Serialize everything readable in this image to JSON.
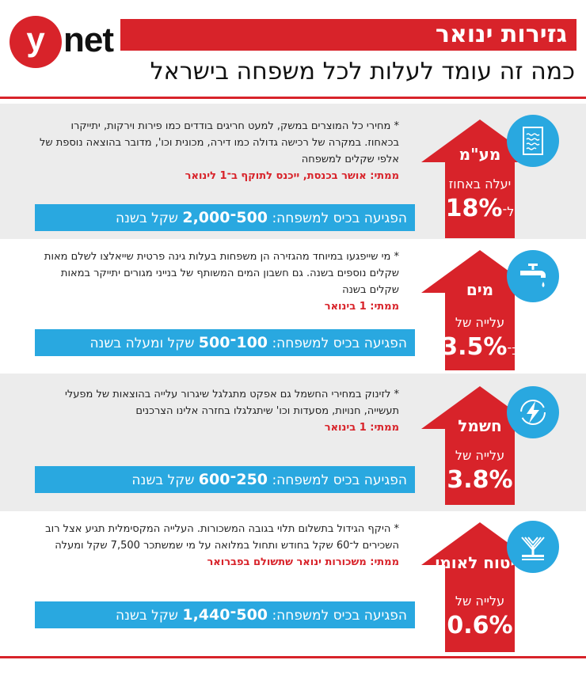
{
  "brand": {
    "logo_y": "y",
    "logo_net": "net"
  },
  "header": {
    "title": "גזירות ינואר",
    "subtitle": "כמה זה עומד לעלות לכל משפחה בישראל"
  },
  "colors": {
    "accent_red": "#d8232a",
    "info_blue": "#29a8e0",
    "panel_grey": "#ececec"
  },
  "items": [
    {
      "name": "מע\"מ",
      "icon": "document-icon",
      "change_label": "יעלה באחוז",
      "change_value": "18%",
      "change_prefix": "ל־",
      "description": "* מחירי כל המוצרים במשק, למעט חריגים בודדים כמו פירות וירקות, יתייקרו בכאחוז. במקרה של רכישה גדולה כמו דירה, מכונית וכו', מדובר בהוצאה נוספת של אלפי שקלים למשפחה",
      "when": "ממתי: אושר בכנסת, ייכנס לתוקף ב־1 לינואר",
      "impact_prefix": "הפגיעה בכיס למשפחה:",
      "impact_range": "500־2,000",
      "impact_suffix": "שקל בשנה"
    },
    {
      "name": "מים",
      "icon": "faucet-icon",
      "change_label": "עלייה של",
      "change_value": "3.5%",
      "change_prefix": "כ־",
      "description": "* מי שייפגעו במיוחד מהגזירה הן משפחות בעלות גינה פרטית שייאלצו לשלם מאות שקלים נוספים בשנה. גם חשבון המים המשותף של בנייני מגורים יתייקר במאות שקלים בשנה",
      "when": "ממתי: 1 בינואר",
      "impact_prefix": "הפגיעה בכיס למשפחה:",
      "impact_range": "100־500",
      "impact_suffix": "שקל ומעלה בשנה"
    },
    {
      "name": "חשמל",
      "icon": "lightning-icon",
      "change_label": "עלייה של",
      "change_value": "3.8%",
      "change_prefix": "",
      "description": "* לזינוק במחירי החשמל גם אפקט מתגלגל שיגרור עלייה בהוצאות של מפעלי תעשייה, חנויות, מסעדות וכו' שיתגלגלו בחזרה אלינו הצרכנים",
      "when": "ממתי: 1 בינואר",
      "impact_prefix": "הפגיעה בכיס למשפחה:",
      "impact_range": "250־600",
      "impact_suffix": "שקל בשנה"
    },
    {
      "name": "ביטוח לאומי",
      "icon": "national-insurance-logo-icon",
      "change_label": "עלייה של",
      "change_value": "0.6%",
      "change_prefix": "",
      "description": "* היקף הגידול בתשלום תלוי בגובה המשכורות. העלייה המקסימלית תגיע אצל רוב השכירים ל־60 שקל בחודש ותחול במלואה על מי שמשתכר 7,500 שקל ומעלה",
      "when": "ממתי: משכורות ינואר שתשולם בפברואר",
      "impact_prefix": "הפגיעה בכיס למשפחה:",
      "impact_range": "500־1,440",
      "impact_suffix": "שקל בשנה"
    }
  ]
}
